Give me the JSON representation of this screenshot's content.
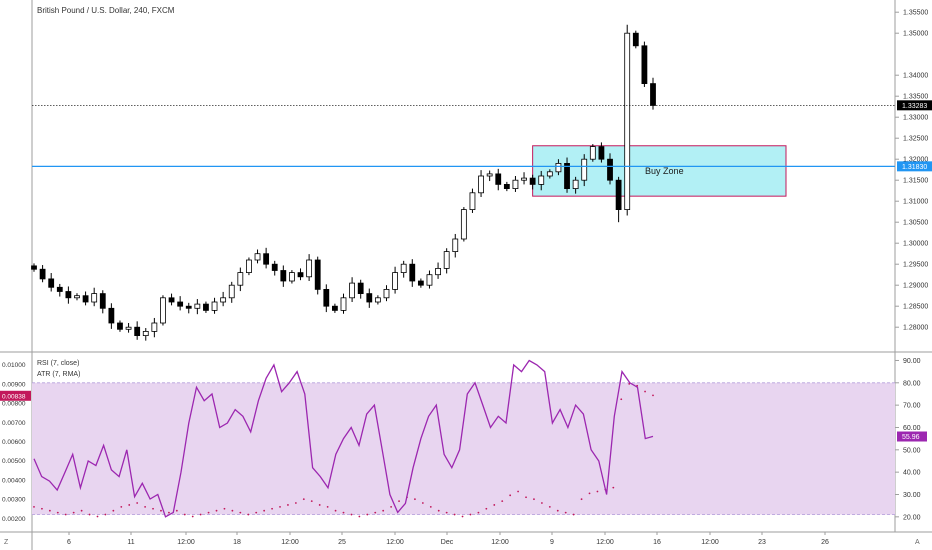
{
  "header": {
    "symbol_title": "British Pound / U.S. Dollar, 240, FXCM"
  },
  "main_chart": {
    "price_axis_labels": [
      "1.35500",
      "1.35000",
      "1.34000",
      "1.33500",
      "1.33000",
      "1.32500",
      "1.32000",
      "1.31500",
      "1.31000",
      "1.30500",
      "1.30000",
      "1.29500",
      "1.29000",
      "1.28500",
      "1.28000"
    ],
    "current_price_label": "1.33283",
    "horizontal_line_label": "1.31830",
    "buy_zone_label": "Buy Zone",
    "colors": {
      "up_candle": "#ffffff",
      "down_candle": "#000000",
      "horizontal_line": "#2196f3",
      "buy_zone_fill": "#b2f0f5",
      "buy_zone_border": "#c2185b"
    }
  },
  "indicator_pane": {
    "rsi_legend": "RSI (7, close)",
    "atr_legend": "ATR (7, RMA)",
    "left_axis_labels": [
      "0.01000",
      "0.00900",
      "0.00800",
      "0.00700",
      "0.00600",
      "0.00500",
      "0.00400",
      "0.00300",
      "0.00200"
    ],
    "atr_value_label": "0.00838",
    "right_axis_labels": [
      "90.00",
      "80.00",
      "70.00",
      "60.00",
      "50.00",
      "40.00",
      "30.00",
      "20.00"
    ],
    "rsi_value_label": "55.96",
    "colors": {
      "rsi_line": "#9c27b0",
      "band_fill": "#e8d5f0",
      "atr_dots": "#c2185b"
    }
  },
  "time_axis": {
    "labels": [
      "6",
      "11",
      "12:00",
      "18",
      "12:00",
      "25",
      "12:00",
      "Dec",
      "12:00",
      "9",
      "12:00",
      "16",
      "12:00",
      "23",
      "26"
    ],
    "left_corner": "Z",
    "right_corner": "A"
  },
  "chart_data": {
    "type": "candlestick",
    "title": "British Pound / U.S. Dollar, 240, FXCM",
    "ylim": [
      1.276,
      1.356
    ],
    "horizontal_line": 1.3183,
    "current_price": 1.33283,
    "zone": {
      "label": "Buy Zone",
      "y_low": 1.3112,
      "y_high": 1.3232
    },
    "close_path": [
      1.2938,
      1.2915,
      1.2895,
      1.2885,
      1.287,
      1.2875,
      1.286,
      1.288,
      1.2845,
      1.281,
      1.2795,
      1.28,
      1.278,
      1.279,
      1.281,
      1.287,
      1.286,
      1.285,
      1.2845,
      1.2855,
      1.284,
      1.286,
      1.287,
      1.29,
      1.293,
      1.296,
      1.2975,
      1.295,
      1.2935,
      1.291,
      1.293,
      1.292,
      1.296,
      1.289,
      1.285,
      1.284,
      1.287,
      1.2905,
      1.288,
      1.286,
      1.287,
      1.289,
      1.293,
      1.295,
      1.291,
      1.29,
      1.2925,
      1.294,
      1.298,
      1.301,
      1.308,
      1.312,
      1.316,
      1.3165,
      1.314,
      1.313,
      1.315,
      1.3155,
      1.314,
      1.316,
      1.317,
      1.319,
      1.313,
      1.315,
      1.32,
      1.323,
      1.32,
      1.315,
      1.308,
      1.35,
      1.347,
      1.338,
      1.3328
    ],
    "rsi": {
      "ylim": [
        15,
        92
      ],
      "overbought": 80,
      "oversold": 21,
      "last": 55.96,
      "values": [
        46,
        38,
        36,
        32,
        40,
        48,
        33,
        45,
        43,
        52,
        41,
        38,
        50,
        29,
        35,
        28,
        30,
        20,
        22,
        40,
        62,
        78,
        72,
        75,
        60,
        62,
        68,
        65,
        58,
        72,
        82,
        88,
        76,
        80,
        85,
        75,
        42,
        38,
        33,
        48,
        55,
        60,
        52,
        66,
        70,
        50,
        30,
        22,
        26,
        42,
        55,
        65,
        70,
        48,
        42,
        50,
        75,
        80,
        70,
        60,
        65,
        62,
        88,
        85,
        90,
        88,
        85,
        62,
        68,
        60,
        70,
        66,
        50,
        45,
        30,
        65,
        85,
        80,
        78,
        55,
        56
      ]
    },
    "atr": {
      "last": 0.00838,
      "values": [
        0.0026,
        0.0025,
        0.0024,
        0.0023,
        0.0022,
        0.0023,
        0.0024,
        0.0022,
        0.0021,
        0.0022,
        0.0024,
        0.0026,
        0.0027,
        0.0028,
        0.0026,
        0.0025,
        0.0024,
        0.0023,
        0.0024,
        0.0022,
        0.0021,
        0.0022,
        0.0023,
        0.0024,
        0.0025,
        0.0024,
        0.0023,
        0.0022,
        0.0023,
        0.0024,
        0.0025,
        0.0026,
        0.0027,
        0.0028,
        0.003,
        0.0029,
        0.0027,
        0.0026,
        0.0024,
        0.0023,
        0.0022,
        0.0021,
        0.0022,
        0.0023,
        0.0024,
        0.0026,
        0.0029,
        0.0031,
        0.003,
        0.0028,
        0.0026,
        0.0024,
        0.0023,
        0.0022,
        0.0021,
        0.0022,
        0.0023,
        0.0025,
        0.0027,
        0.0029,
        0.0032,
        0.0034,
        0.0031,
        0.003,
        0.0028,
        0.0026,
        0.0024,
        0.0023,
        0.0022,
        0.003,
        0.0033,
        0.0034,
        0.0035,
        0.0036,
        0.0082,
        0.009,
        0.0089,
        0.0086,
        0.0084
      ]
    }
  }
}
